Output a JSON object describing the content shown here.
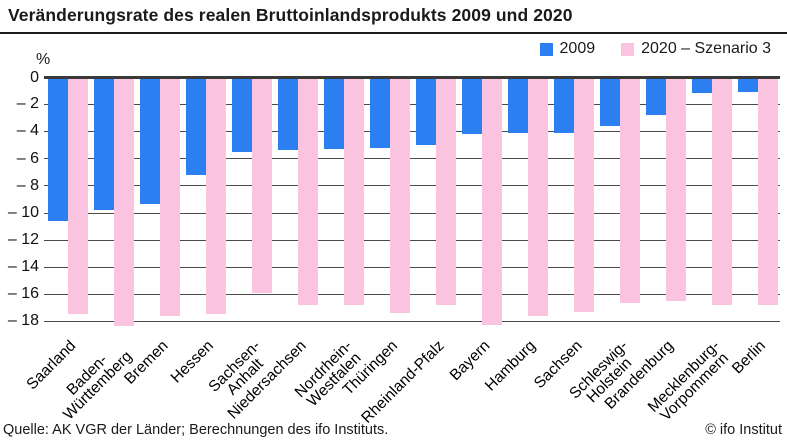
{
  "title": "Veränderungsrate des realen Bruttoinlandsprodukts 2009 und 2020",
  "y_axis": {
    "unit_label": "%",
    "ticks": [
      {
        "value": 0,
        "label": "0"
      },
      {
        "value": -2,
        "label": "– 2"
      },
      {
        "value": -4,
        "label": "– 4"
      },
      {
        "value": -6,
        "label": "– 6"
      },
      {
        "value": -8,
        "label": "– 8"
      },
      {
        "value": -10,
        "label": "– 10"
      },
      {
        "value": -12,
        "label": "– 12"
      },
      {
        "value": -14,
        "label": "– 14"
      },
      {
        "value": -16,
        "label": "– 16"
      },
      {
        "value": -18,
        "label": "– 18"
      }
    ]
  },
  "legend": {
    "position": "top-right",
    "items": [
      {
        "label": "2009",
        "color": "#2B7FF1"
      },
      {
        "label": "2020 – Szenario 3",
        "color": "#FAC3DF"
      }
    ]
  },
  "footer": {
    "source": "Quelle: AK VGR der Länder; Berechnungen des ifo Instituts.",
    "copyright": "© ifo Institut"
  },
  "chart_data": {
    "type": "bar",
    "title": "Veränderungsrate des realen Bruttoinlandsprodukts 2009 und 2020",
    "xlabel": "",
    "ylabel": "%",
    "ylim": [
      -19,
      0
    ],
    "y_tick_step": 2,
    "grid": true,
    "legend_position": "top-right",
    "categories": [
      "Saarland",
      "Baden-Württemberg",
      "Bremen",
      "Hessen",
      "Sachsen-Anhalt",
      "Niedersachsen",
      "Nordrhein-Westfalen",
      "Thüringen",
      "Rheinland-Pfalz",
      "Bayern",
      "Hamburg",
      "Sachsen",
      "Schleswig-Holstein",
      "Brandenburg",
      "Mecklenburg-Vorpommern",
      "Berlin"
    ],
    "category_display_labels": [
      "Saarland",
      "Baden-\nWürttemberg",
      "Bremen",
      "Hessen",
      "Sachsen-\nAnhalt",
      "Niedersachsen",
      "Nordrhein-\nWestfalen",
      "Thüringen",
      "Rheinland-Pfalz",
      "Bayern",
      "Hamburg",
      "Sachsen",
      "Schleswig-\nHolstein",
      "Brandenburg",
      "Mecklenburg-\nVorpommern",
      "Berlin"
    ],
    "series": [
      {
        "name": "2009",
        "color": "#2B7FF1",
        "values": [
          -10.6,
          -9.8,
          -9.4,
          -7.2,
          -5.5,
          -5.4,
          -5.3,
          -5.2,
          -5.0,
          -4.2,
          -4.1,
          -4.1,
          -3.6,
          -2.8,
          -1.2,
          -1.1
        ]
      },
      {
        "name": "2020 – Szenario 3",
        "color": "#FAC3DF",
        "values": [
          -17.5,
          -18.4,
          -17.6,
          -17.5,
          -15.9,
          -16.8,
          -16.8,
          -17.4,
          -16.8,
          -18.3,
          -17.6,
          -17.3,
          -16.7,
          -16.5,
          -16.8,
          -16.8
        ]
      }
    ]
  }
}
